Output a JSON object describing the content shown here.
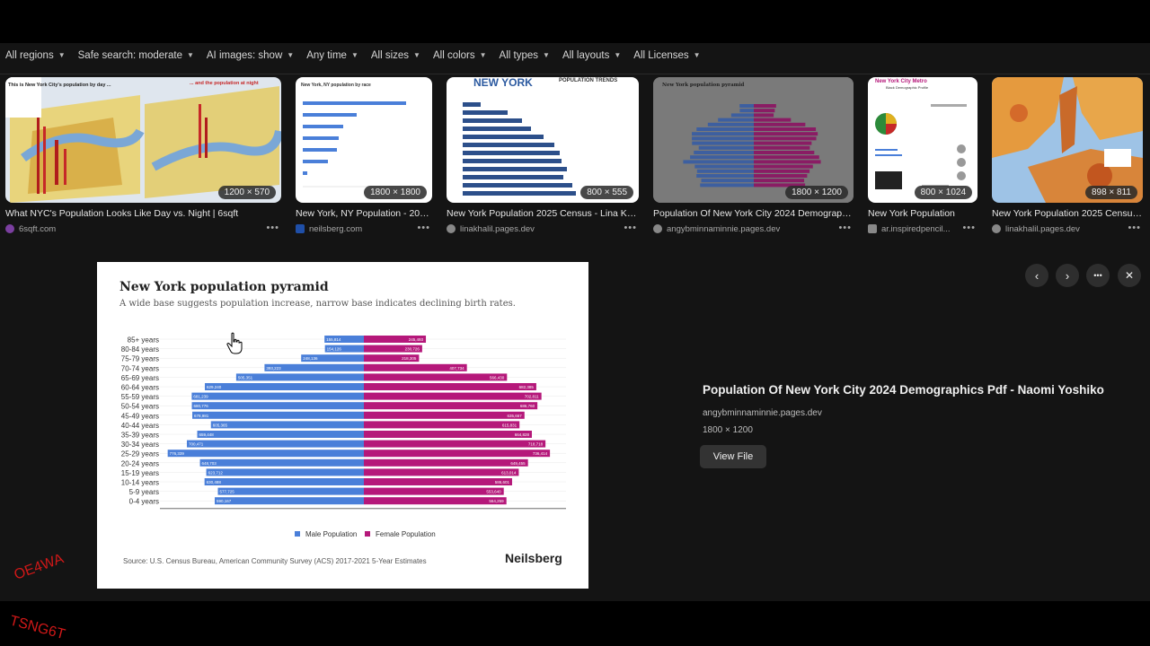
{
  "filters": [
    "All regions",
    "Safe search: moderate",
    "AI images: show",
    "Any time",
    "All sizes",
    "All colors",
    "All types",
    "All layouts",
    "All Licenses"
  ],
  "results": [
    {
      "title": "What NYC's Population Looks Like Day vs. Night | 6sqft",
      "source": "6sqft.com",
      "dims": "1200 × 570",
      "favicon_color": "#7b3fa0",
      "thumb_text": {
        "a": "This is New York City's population by day ...",
        "b": "... and the population at night"
      }
    },
    {
      "title": "New York, NY Population - 2023 ...",
      "source": "neilsberg.com",
      "dims": "1800 × 1800",
      "favicon_color": "#1f4fa8",
      "thumb_text": {
        "a": "New York, NY population by race"
      }
    },
    {
      "title": "New York Population 2025 Census - Lina Khalil",
      "source": "linakhalil.pages.dev",
      "dims": "800 × 555",
      "favicon_color": "#888888",
      "thumb_text": {
        "a": "NEW YORK",
        "b": "POPULATION TRENDS"
      }
    },
    {
      "title": "Population Of New York City 2024 Demographi...",
      "source": "angybminnaminnie.pages.dev",
      "dims": "1800 × 1200",
      "favicon_color": "#888888",
      "thumb_text": {
        "a": "New York population pyramid"
      }
    },
    {
      "title": "New York Population",
      "source": "ar.inspiredpencil...",
      "dims": "800 × 1024",
      "favicon_color": "#888888",
      "thumb_text": {
        "a": "New York City Metro",
        "b": "Black Demographic Profile"
      }
    },
    {
      "title": "New York Population 2025 Census -...",
      "source": "linakhalil.pages.dev",
      "dims": "898 × 811",
      "favicon_color": "#888888",
      "thumb_text": {}
    }
  ],
  "preview": {
    "title": "New York population pyramid",
    "subtitle": "A wide base suggests population increase, narrow base indicates declining birth rates.",
    "source_note": "Source: U.S. Census Bureau, American Community Survey (ACS) 2017-2021 5-Year Estimates",
    "brand": "Neilsberg"
  },
  "chart_data": {
    "type": "bar",
    "title": "New York population pyramid",
    "subtitle": "A wide base suggests population increase, narrow base indicates declining birth rates.",
    "categories": [
      "85+ years",
      "80-84 years",
      "75-79 years",
      "70-74 years",
      "65-69 years",
      "60-64 years",
      "55-59 years",
      "50-54 years",
      "45-49 years",
      "40-44 years",
      "35-39 years",
      "30-34 years",
      "25-29 years",
      "20-24 years",
      "15-19 years",
      "10-14 years",
      "5-9 years",
      "0-4 years"
    ],
    "series": [
      {
        "name": "Male Population",
        "color": "#4a7fd9",
        "values": [
          155814,
          154126,
          248136,
          393223,
          505351,
          629240,
          681239,
          680776,
          678981,
          605365,
          659448,
          700471,
          776339,
          648703,
          623712,
          630488,
          577725,
          590167
        ],
        "labels": [
          "155,814",
          "154,126",
          "248,136",
          "393,223",
          "505,351",
          "629,240",
          "681,239",
          "680,776",
          "678,981",
          "605,365",
          "659,448",
          "700,471",
          "776,339",
          "648,703",
          "623,712",
          "630,488",
          "577,725",
          "590,167"
        ]
      },
      {
        "name": "Female Population",
        "color": "#b5187a",
        "values": [
          245493,
          230726,
          218305,
          407734,
          566430,
          682385,
          702811,
          686760,
          635667,
          615831,
          664828,
          718718,
          736414,
          649455,
          613014,
          586601,
          553640,
          564259
        ],
        "labels": [
          "245,493",
          "230,726",
          "218,305",
          "407,734",
          "566,430",
          "682,385",
          "702,811",
          "686,760",
          "635,667",
          "615,831",
          "664,828",
          "718,718",
          "736,414",
          "649,455",
          "613,014",
          "586,601",
          "553,640",
          "564,259"
        ]
      }
    ],
    "legend": "bottom-center",
    "xlim": [
      -800000,
      800000
    ]
  },
  "side_panel": {
    "title": "Population Of New York City 2024 Demographics Pdf - Naomi Yoshiko",
    "domain": "angybminnaminnie.pages.dev",
    "dims": "1800 × 1200",
    "view_button": "View File"
  },
  "nav": {
    "prev": "‹",
    "next": "›",
    "more": "•••",
    "close": "✕"
  },
  "watermark_text": "OE4WATSNG6T"
}
